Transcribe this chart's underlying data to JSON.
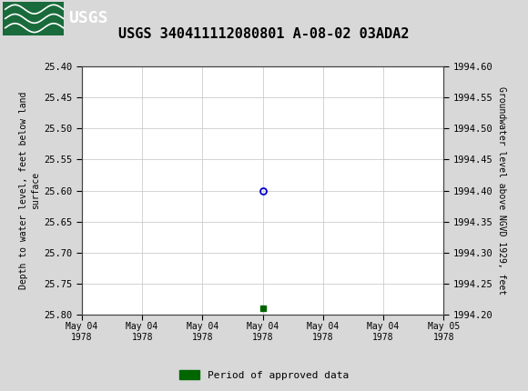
{
  "title": "USGS 340411112080801 A-08-02 03ADA2",
  "title_fontsize": 11,
  "header_bg_color": "#1a6b3c",
  "plot_bg_color": "#ffffff",
  "fig_bg_color": "#d8d8d8",
  "grid_color": "#cccccc",
  "ylabel_left": "Depth to water level, feet below land\nsurface",
  "ylabel_right": "Groundwater level above NGVD 1929, feet",
  "ylim_left_top": 25.4,
  "ylim_left_bottom": 25.8,
  "ylim_right_bottom": 1994.2,
  "ylim_right_top": 1994.6,
  "yticks_left": [
    25.4,
    25.45,
    25.5,
    25.55,
    25.6,
    25.65,
    25.7,
    25.75,
    25.8
  ],
  "yticks_right": [
    1994.2,
    1994.25,
    1994.3,
    1994.35,
    1994.4,
    1994.45,
    1994.5,
    1994.55,
    1994.6
  ],
  "point_x_hours": 12,
  "point_y": 25.6,
  "point_color": "#0000cc",
  "point_size": 5,
  "bar_x_hours": 12,
  "bar_y": 25.79,
  "bar_color": "#006600",
  "bar_size": 4,
  "xlim_start_hours": 0,
  "xlim_end_hours": 24,
  "xtick_hours": [
    0,
    4,
    8,
    12,
    16,
    20,
    24
  ],
  "xtick_labels": [
    "May 04\n1978",
    "May 04\n1978",
    "May 04\n1978",
    "May 04\n1978",
    "May 04\n1978",
    "May 04\n1978",
    "May 05\n1978"
  ],
  "legend_label": "Period of approved data",
  "legend_color": "#006600"
}
